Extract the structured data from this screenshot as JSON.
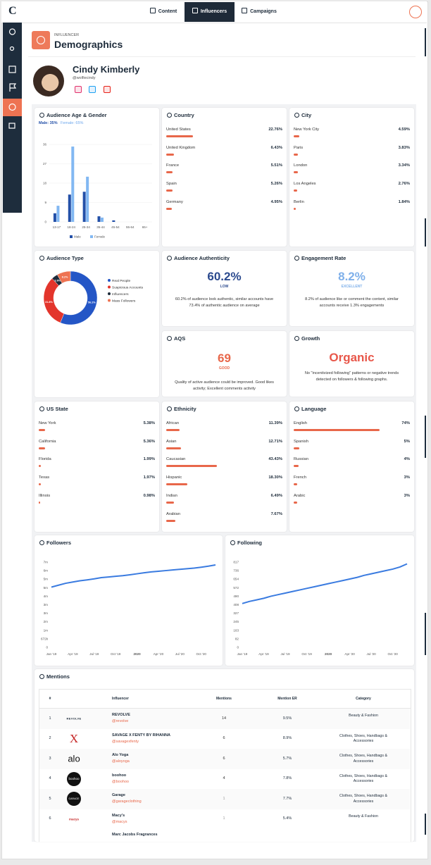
{
  "nav": {
    "logo": "C",
    "tabs": [
      "Content",
      "Influencers",
      "Campaigns"
    ]
  },
  "header": {
    "eyebrow": "INFLUENCER",
    "title": "Demographics"
  },
  "profile": {
    "name": "Cindy Kimberly",
    "handle": "@wolfiecindy"
  },
  "age_gender": {
    "title": "Audience Age & Gender",
    "male": "Male: 35%",
    "female": "Female: 65%",
    "chart": {
      "type": "bar",
      "categories": [
        "13-17",
        "18-24",
        "25-34",
        "35-44",
        "45-54",
        "55-64",
        "65+"
      ],
      "ylim": [
        0,
        36
      ],
      "yticks": [
        0,
        9,
        18,
        27,
        36
      ],
      "grid": true,
      "series": [
        {
          "name": "Male",
          "color": "#2350a8",
          "values": [
            4,
            12.7,
            14,
            2.6,
            0.7,
            0,
            0
          ]
        },
        {
          "name": "Female",
          "color": "#82b8f2",
          "values": [
            7.5,
            35,
            21,
            2,
            0,
            0,
            0
          ]
        }
      ]
    }
  },
  "country": {
    "title": "Country",
    "xlim": [
      0,
      100
    ],
    "color": "#e8674a",
    "names": [
      "United States",
      "United Kingdom",
      "France",
      "Spain",
      "Germany"
    ],
    "values": [
      22.76,
      6.43,
      5.51,
      5.26,
      4.95
    ],
    "value_labels": [
      "22.76%",
      "6.43%",
      "5.51%",
      "5.26%",
      "4.95%"
    ]
  },
  "city": {
    "title": "City",
    "xlim": [
      0,
      100
    ],
    "color": "#e8674a",
    "names": [
      "New York City",
      "Paris",
      "London",
      "Los Angeles",
      "Berlin"
    ],
    "values": [
      4.59,
      3.83,
      3.34,
      2.76,
      1.84
    ],
    "value_labels": [
      "4.59%",
      "3.83%",
      "3.34%",
      "2.76%",
      "1.84%"
    ]
  },
  "audience_type": {
    "title": "Audience Type",
    "chart": {
      "type": "pie",
      "categories": [
        "Real People",
        "Suspicious Accounts",
        "Influencers",
        "Mass Followers"
      ],
      "values": [
        56.2,
        31.8,
        3.8,
        8.2
      ],
      "value_labels": [
        "56.2%",
        "31.8%",
        "3.8%",
        "8.2%"
      ],
      "colors": [
        "#2456c6",
        "#e3352c",
        "#1d2b3a",
        "#ee7352"
      ]
    }
  },
  "authenticity": {
    "title": "Audience Authenticity",
    "value": "60.2%",
    "rating": "LOW",
    "color": "#2b4a8e",
    "text": "60.2% of audience look authentic, similar accounts have 73.4% of authentic audience on average"
  },
  "engagement": {
    "title": "Engagement Rate",
    "value": "8.2%",
    "rating": "EXCELLENT",
    "color": "#7fb0ea",
    "text": "8.2% of audience like or comment the content, similar accounts receive 1.3% engagements"
  },
  "aqs": {
    "title": "AQS",
    "value": "69",
    "rating": "GOOD",
    "color": "#e8674a",
    "text": "Quality of active audience could be improved. Good likes activity; Excellent comments activity"
  },
  "growth": {
    "title": "Growth",
    "value": "Organic",
    "color": "#e8574a",
    "text": "No \"incentivized following\" patterns or negative trends detected on followers & following graphs."
  },
  "us_state": {
    "title": "US State",
    "xlim": [
      0,
      100
    ],
    "color": "#e8674a",
    "names": [
      "New York",
      "California",
      "Florida",
      "Texas",
      "Illinois"
    ],
    "values": [
      5.38,
      5.36,
      1.99,
      1.97,
      0.98
    ],
    "value_labels": [
      "5.38%",
      "5.36%",
      "1.99%",
      "1.97%",
      "0.98%"
    ]
  },
  "ethnicity": {
    "title": "Ethnicity",
    "xlim": [
      0,
      100
    ],
    "color": "#e8674a",
    "names": [
      "African",
      "Asian",
      "Caucasian",
      "Hispanic",
      "Indian",
      "Arabian"
    ],
    "values": [
      11.39,
      12.71,
      43.43,
      18.3,
      6.49,
      7.67
    ],
    "value_labels": [
      "11.39%",
      "12.71%",
      "43.43%",
      "18.30%",
      "6.49%",
      "7.67%"
    ]
  },
  "language": {
    "title": "Language",
    "xlim": [
      0,
      100
    ],
    "color": "#e8674a",
    "names": [
      "English",
      "Spanish",
      "Russian",
      "French",
      "Arabic"
    ],
    "values": [
      74,
      5,
      4,
      3,
      3
    ],
    "value_labels": [
      "74%",
      "5%",
      "4%",
      "3%",
      "3%"
    ]
  },
  "followers": {
    "title": "Followers",
    "chart": {
      "type": "line",
      "color": "#3a7be0",
      "x": [
        "2019-01",
        "2019-02",
        "2019-03",
        "2019-04",
        "2019-05",
        "2019-06",
        "2019-07",
        "2019-08",
        "2019-09",
        "2019-10",
        "2019-11",
        "2019-12",
        "2020-01",
        "2020-02",
        "2020-03",
        "2020-04",
        "2020-05",
        "2020-06",
        "2020-07",
        "2020-08",
        "2020-09",
        "2020-10",
        "2020-11",
        "2020-12"
      ],
      "values": [
        4750000,
        4900000,
        5050000,
        5150000,
        5250000,
        5320000,
        5400000,
        5500000,
        5550000,
        5600000,
        5650000,
        5720000,
        5800000,
        5880000,
        5950000,
        6000000,
        6050000,
        6100000,
        6150000,
        6200000,
        6250000,
        6320000,
        6400000,
        6500000
      ],
      "ylim": [
        0,
        6720000
      ],
      "yticks": [
        0,
        {
          "value": 672000,
          "label": "672k"
        },
        {
          "value": 1344000,
          "label": "1m"
        },
        {
          "value": 2016000,
          "label": "2m"
        },
        {
          "value": 2688000,
          "label": "3m"
        },
        {
          "value": 3360000,
          "label": "3m"
        },
        {
          "value": 4032000,
          "label": "4m"
        },
        {
          "value": 4704000,
          "label": "5m"
        },
        {
          "value": 5376000,
          "label": "5m"
        },
        {
          "value": 6048000,
          "label": "6m"
        },
        {
          "value": 6720000,
          "label": "7m"
        }
      ],
      "xticks": [
        {
          "value": "2019-01",
          "label": "Jan '19"
        },
        {
          "value": "2019-04",
          "label": "Apr '19"
        },
        {
          "value": "2019-07",
          "label": "Jul '19"
        },
        {
          "value": "2019-10",
          "label": "Oct '19"
        },
        {
          "value": "2020-01",
          "label": "2020"
        },
        {
          "value": "2020-04",
          "label": "Apr '20"
        },
        {
          "value": "2020-07",
          "label": "Jul '20"
        },
        {
          "value": "2020-10",
          "label": "Oct '20"
        }
      ]
    }
  },
  "following": {
    "title": "Following",
    "chart": {
      "type": "line",
      "color": "#3a7be0",
      "x": [
        "2019-01",
        "2019-02",
        "2019-03",
        "2019-04",
        "2019-05",
        "2019-06",
        "2019-07",
        "2019-08",
        "2019-09",
        "2019-10",
        "2019-11",
        "2019-12",
        "2020-01",
        "2020-02",
        "2020-03",
        "2020-04",
        "2020-05",
        "2020-06",
        "2020-07",
        "2020-08",
        "2020-09",
        "2020-10",
        "2020-11",
        "2020-12"
      ],
      "values": [
        420,
        440,
        455,
        470,
        490,
        505,
        520,
        535,
        550,
        565,
        580,
        595,
        610,
        625,
        640,
        655,
        670,
        690,
        705,
        720,
        735,
        750,
        770,
        800
      ],
      "ylim": [
        0,
        817
      ],
      "yticks": [
        0,
        82,
        163,
        245,
        327,
        408,
        490,
        572,
        654,
        736,
        817
      ],
      "xticks": [
        {
          "value": "2019-01",
          "label": "Jan '19"
        },
        {
          "value": "2019-04",
          "label": "Apr '19"
        },
        {
          "value": "2019-07",
          "label": "Jul '19"
        },
        {
          "value": "2019-10",
          "label": "Oct '19"
        },
        {
          "value": "2020-01",
          "label": "2020"
        },
        {
          "value": "2020-04",
          "label": "Apr '20"
        },
        {
          "value": "2020-07",
          "label": "Jul '20"
        },
        {
          "value": "2020-10",
          "label": "Oct '20"
        }
      ]
    }
  },
  "mentions": {
    "title": "Mentions",
    "columns": [
      "#",
      "Influencer",
      "Mentions",
      "Mention ER",
      "Category"
    ],
    "rows": [
      {
        "rank": "1",
        "logo": "REVOLVE",
        "name": "REVOLVE",
        "handle": "@revolve",
        "mentions": "14",
        "er": "9.5%",
        "category": "Beauty & Fashion"
      },
      {
        "rank": "2",
        "logo": "X",
        "name": "SAVAGE X FENTY BY RIHANNA",
        "handle": "@savagexfenty",
        "mentions": "6",
        "er": "8.9%",
        "category": "Clothes, Shoes, Handbags & Accessories"
      },
      {
        "rank": "3",
        "logo": "alo",
        "name": "Alo Yoga",
        "handle": "@aloyoga",
        "mentions": "6",
        "er": "5.7%",
        "category": "Clothes, Shoes, Handbags & Accessories"
      },
      {
        "rank": "4",
        "logo": "boohoo",
        "name": "boohoo",
        "handle": "@boohoo",
        "mentions": "4",
        "er": "7.8%",
        "category": "Clothes, Shoes, Handbags & Accessories"
      },
      {
        "rank": "5",
        "logo": "GARAGE",
        "name": "Garage",
        "handle": "@garageclothing",
        "mentions": "1",
        "er": "7.7%",
        "category": "Clothes, Shoes, Handbags & Accessories"
      },
      {
        "rank": "6",
        "logo": "macys",
        "name": "Macy's",
        "handle": "@macys",
        "mentions": "1",
        "er": "5.4%",
        "category": "Beauty & Fashion"
      }
    ],
    "partial_row": {
      "name": "Marc Jacobs Fragrances"
    }
  }
}
